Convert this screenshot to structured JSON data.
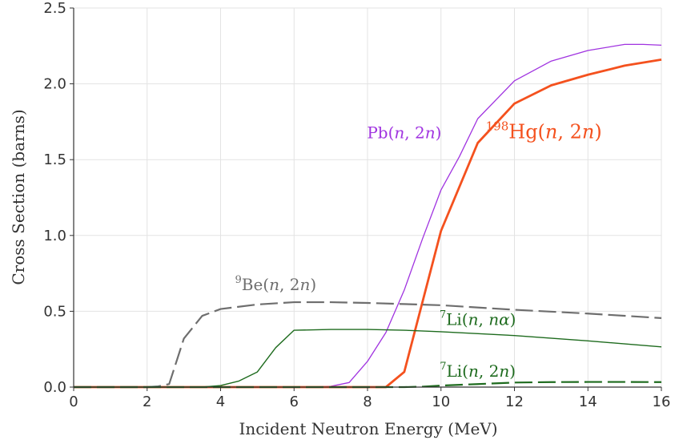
{
  "chart_data": {
    "type": "line",
    "xlabel": "Incident Neutron Energy (MeV)",
    "ylabel": "Cross Section (barns)",
    "xlim": [
      0,
      16
    ],
    "ylim": [
      0,
      2.5
    ],
    "xticks": [
      0,
      2,
      4,
      6,
      8,
      10,
      12,
      14,
      16
    ],
    "xtick_labels": [
      "0",
      "2",
      "4",
      "6",
      "8",
      "10",
      "12",
      "14",
      "16"
    ],
    "yticks": [
      0.0,
      0.5,
      1.0,
      1.5,
      2.0,
      2.5
    ],
    "ytick_labels": [
      "0.0",
      "0.5",
      "1.0",
      "1.5",
      "2.0",
      "2.5"
    ],
    "grid": true,
    "series": [
      {
        "name": "Pb(n, 2n)",
        "color": "#a033e0",
        "dash": "solid",
        "width": 1.3,
        "x": [
          0,
          6,
          6.5,
          7,
          7.5,
          8,
          8.5,
          9,
          9.5,
          10,
          10.5,
          11,
          12,
          13,
          14,
          15,
          15.5,
          16
        ],
        "y": [
          0,
          0,
          0,
          0.005,
          0.03,
          0.17,
          0.36,
          0.64,
          0.98,
          1.3,
          1.52,
          1.77,
          2.02,
          2.15,
          2.22,
          2.26,
          2.26,
          2.255
        ]
      },
      {
        "name": "198Hg(n, 2n)",
        "color": "#f4511e",
        "dash": "solid",
        "width": 2.8,
        "x": [
          0,
          8.5,
          9,
          10,
          11,
          12,
          13,
          14,
          15,
          16
        ],
        "y": [
          0,
          0,
          0.1,
          1.03,
          1.61,
          1.87,
          1.99,
          2.06,
          2.12,
          2.16
        ]
      },
      {
        "name": "9Be(n, 2n)",
        "color": "#6e6e6e",
        "dash": "long-dash",
        "width": 2.2,
        "x": [
          0,
          2,
          2.3,
          2.6,
          3,
          3.5,
          4,
          5,
          6,
          7,
          8,
          10,
          12,
          14,
          16
        ],
        "y": [
          0,
          0,
          0.005,
          0.02,
          0.32,
          0.47,
          0.515,
          0.545,
          0.56,
          0.56,
          0.555,
          0.54,
          0.51,
          0.485,
          0.455
        ]
      },
      {
        "name": "7Li(n, nα)",
        "color": "#1e6b1e",
        "dash": "solid",
        "width": 1.4,
        "x": [
          0,
          3.5,
          4,
          4.5,
          5,
          5.5,
          6,
          7,
          8,
          9,
          10,
          12,
          14,
          16
        ],
        "y": [
          0,
          0,
          0.01,
          0.04,
          0.1,
          0.26,
          0.375,
          0.38,
          0.38,
          0.375,
          0.365,
          0.34,
          0.305,
          0.265
        ]
      },
      {
        "name": "7Li(n, 2n)",
        "color": "#1e6b1e",
        "dash": "long-dash",
        "width": 2.2,
        "x": [
          0,
          9,
          9.5,
          10,
          11,
          12,
          13,
          14,
          15,
          16
        ],
        "y": [
          0,
          0,
          0.003,
          0.01,
          0.02,
          0.03,
          0.033,
          0.034,
          0.034,
          0.033
        ]
      }
    ],
    "annotations": [
      {
        "series": 0,
        "x": 9.0,
        "y": 1.64,
        "size": "normal"
      },
      {
        "series": 1,
        "x": 12.8,
        "y": 1.64,
        "size": "big"
      },
      {
        "series": 2,
        "x": 5.5,
        "y": 0.64,
        "size": "normal"
      },
      {
        "series": 3,
        "x": 11.0,
        "y": 0.41,
        "size": "normal"
      },
      {
        "series": 4,
        "x": 11.0,
        "y": 0.07,
        "size": "normal"
      }
    ]
  },
  "annotation_text": {
    "pb": {
      "pre": "Pb(",
      "var": "n",
      "post": ", 2",
      "var2": "n",
      "end": ")"
    },
    "hg": {
      "sup": "198",
      "pre": "Hg(",
      "var": "n",
      "post": ", 2",
      "var2": "n",
      "end": ")"
    },
    "be": {
      "sup": "9",
      "pre": "Be(",
      "var": "n",
      "post": ", 2",
      "var2": "n",
      "end": ")"
    },
    "li_na": {
      "sup": "7",
      "pre": "Li(",
      "var": "n",
      "post": ", ",
      "var2": "nα",
      "end": ")"
    },
    "li_2n": {
      "sup": "7",
      "pre": "Li(",
      "var": "n",
      "post": ", 2",
      "var2": "n",
      "end": ")"
    }
  }
}
